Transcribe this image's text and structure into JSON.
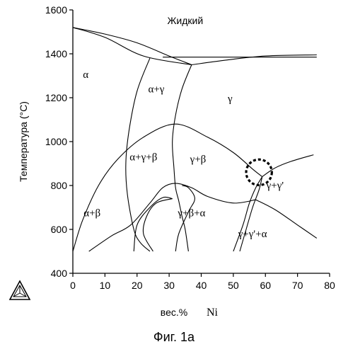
{
  "chart_data": {
    "type": "phase-diagram",
    "title": "",
    "xlabel_prefix": "вес.%",
    "xlabel_element": "Ni",
    "ylabel": "Температура   (°C)",
    "xlim": [
      0,
      80
    ],
    "ylim": [
      400,
      1600
    ],
    "xticks": [
      0,
      10,
      20,
      30,
      40,
      50,
      60,
      70,
      80
    ],
    "yticks": [
      400,
      600,
      800,
      1000,
      1200,
      1400,
      1600
    ],
    "regions": [
      {
        "label": "Жидкий",
        "x": 35,
        "y": 1535
      },
      {
        "label": "α",
        "x": 4,
        "y": 1290
      },
      {
        "label": "α+γ",
        "x": 26,
        "y": 1225
      },
      {
        "label": "γ",
        "x": 49,
        "y": 1180
      },
      {
        "label": "α+γ+β",
        "x": 22,
        "y": 915
      },
      {
        "label": "γ+β",
        "x": 39,
        "y": 905
      },
      {
        "label": "α+β",
        "x": 6,
        "y": 660
      },
      {
        "label": "γ+β+α",
        "x": 37,
        "y": 660
      },
      {
        "label": "γ+γ'",
        "x": 63,
        "y": 785
      },
      {
        "label": "γ+γ'+α",
        "x": 56,
        "y": 565
      }
    ],
    "phase_boundaries": [
      {
        "name": "liquidus-left",
        "points": [
          [
            0,
            1520
          ],
          [
            10,
            1490
          ],
          [
            20,
            1450
          ],
          [
            30,
            1390
          ],
          [
            37,
            1350
          ]
        ]
      },
      {
        "name": "solidus-left",
        "points": [
          [
            0,
            1520
          ],
          [
            10,
            1475
          ],
          [
            22,
            1390
          ],
          [
            37,
            1350
          ]
        ]
      },
      {
        "name": "liquid-gamma-upper",
        "points": [
          [
            37,
            1350
          ],
          [
            47,
            1370
          ],
          [
            60,
            1390
          ],
          [
            76,
            1395
          ]
        ]
      },
      {
        "name": "liquid-gamma-lower",
        "points": [
          [
            28,
            1385
          ],
          [
            40,
            1385
          ],
          [
            60,
            1385
          ],
          [
            76,
            1385
          ]
        ]
      },
      {
        "name": "alpha-gamma-left",
        "points": [
          [
            24,
            1380
          ],
          [
            20,
            1230
          ],
          [
            17.5,
            1050
          ],
          [
            16.5,
            900
          ],
          [
            17,
            760
          ],
          [
            19,
            600
          ],
          [
            21,
            540
          ],
          [
            24,
            500
          ]
        ]
      },
      {
        "name": "alpha-gamma-right",
        "points": [
          [
            37,
            1350
          ],
          [
            34,
            1240
          ],
          [
            32,
            1120
          ],
          [
            31,
            1000
          ],
          [
            31.5,
            880
          ],
          [
            32,
            790
          ],
          [
            33,
            730
          ],
          [
            34,
            660
          ],
          [
            35,
            600
          ],
          [
            36,
            500
          ]
        ]
      },
      {
        "name": "beta-solvus-upper",
        "points": [
          [
            0,
            500
          ],
          [
            3,
            640
          ],
          [
            8,
            800
          ],
          [
            14,
            920
          ],
          [
            22,
            1020
          ],
          [
            32,
            1080
          ],
          [
            42,
            1020
          ],
          [
            50,
            950
          ],
          [
            56,
            875
          ],
          [
            59,
            840
          ]
        ]
      },
      {
        "name": "alpha-beta-left",
        "points": [
          [
            5,
            500
          ],
          [
            12,
            570
          ],
          [
            18,
            620
          ],
          [
            24,
            720
          ],
          [
            28,
            790
          ],
          [
            32,
            810
          ],
          [
            37,
            790
          ],
          [
            42,
            750
          ],
          [
            50,
            720
          ],
          [
            57,
            735
          ]
        ]
      },
      {
        "name": "inner-dome-left",
        "points": [
          [
            19,
            500
          ],
          [
            20,
            620
          ],
          [
            24,
            700
          ],
          [
            28,
            745
          ],
          [
            31,
            740
          ]
        ]
      },
      {
        "name": "inner-dome-right",
        "points": [
          [
            25,
            500
          ],
          [
            22,
            580
          ],
          [
            23,
            660
          ],
          [
            26,
            720
          ],
          [
            31,
            740
          ]
        ]
      },
      {
        "name": "inner-dome-far",
        "points": [
          [
            32,
            500
          ],
          [
            33,
            580
          ],
          [
            36,
            680
          ],
          [
            38,
            740
          ],
          [
            36,
            790
          ],
          [
            34,
            800
          ]
        ]
      },
      {
        "name": "gamma-prime-solvus",
        "points": [
          [
            59,
            840
          ],
          [
            63,
            880
          ],
          [
            68,
            910
          ],
          [
            75,
            940
          ]
        ]
      },
      {
        "name": "gamma-prime-left",
        "points": [
          [
            59,
            840
          ],
          [
            57,
            790
          ],
          [
            55,
            720
          ],
          [
            53,
            620
          ],
          [
            50,
            500
          ]
        ]
      },
      {
        "name": "gamma-prime-inner",
        "points": [
          [
            59,
            840
          ],
          [
            58,
            780
          ],
          [
            56,
            700
          ],
          [
            54,
            600
          ],
          [
            52,
            500
          ]
        ]
      },
      {
        "name": "gamma-gammaprime-alpha",
        "points": [
          [
            57,
            735
          ],
          [
            63,
            690
          ],
          [
            70,
            620
          ],
          [
            76,
            560
          ]
        ]
      }
    ],
    "highlight": {
      "type": "dashed-circle",
      "x": 58,
      "y": 860,
      "radius_units": 4
    }
  },
  "caption": "Фиг. 1a"
}
